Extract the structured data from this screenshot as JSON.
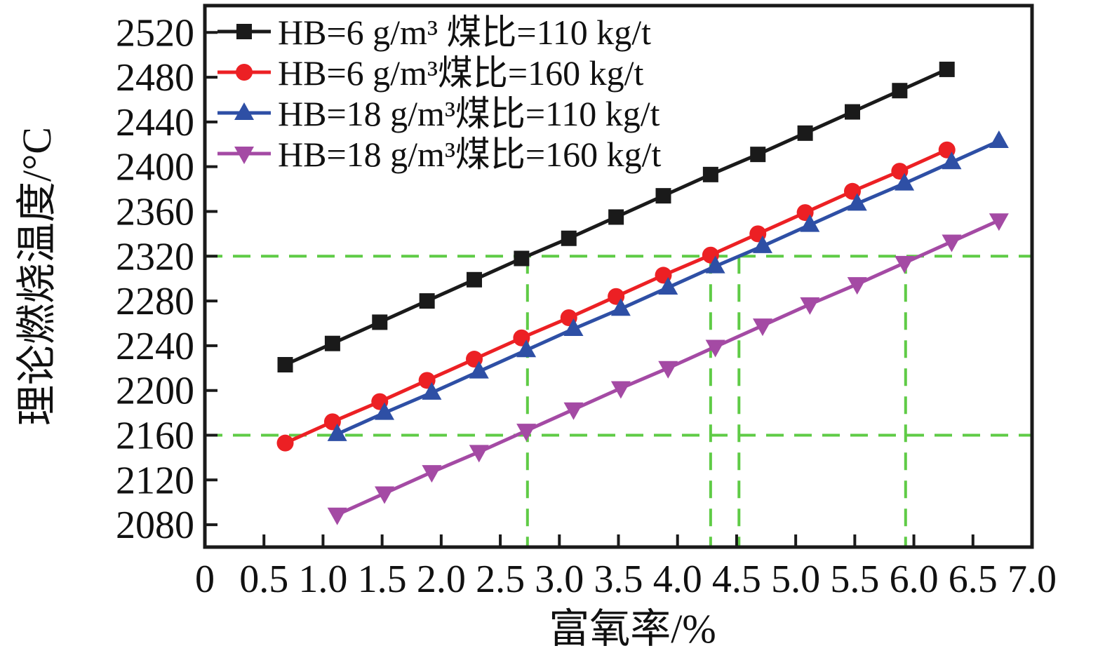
{
  "chart_data": {
    "type": "line",
    "title": "",
    "xlabel": "富氧率/%",
    "ylabel": "理论燃烧温度/°C",
    "xlim": [
      0,
      7.0
    ],
    "ylim": [
      2060,
      2544
    ],
    "x_ticks": [
      0,
      0.5,
      1.0,
      1.5,
      2.0,
      2.5,
      3.0,
      3.5,
      4.0,
      4.5,
      5.0,
      5.5,
      6.0,
      6.5,
      7.0
    ],
    "x_tick_labels": [
      "0",
      "0.5",
      "1.0",
      "1.5",
      "2.0",
      "2.5",
      "3.0",
      "3.5",
      "4.0",
      "4.5",
      "5.0",
      "5.5",
      "6.0",
      "6.5",
      "7.0"
    ],
    "y_ticks": [
      2080,
      2120,
      2160,
      2200,
      2240,
      2280,
      2320,
      2360,
      2400,
      2440,
      2480,
      2520
    ],
    "y_tick_labels": [
      "2080",
      "2120",
      "2160",
      "2200",
      "2240",
      "2280",
      "2320",
      "2360",
      "2400",
      "2440",
      "2480",
      "2520"
    ],
    "grid": false,
    "legend_position": "top-left",
    "axis_color": "#1a1a1a",
    "background_color": "#ffffff",
    "series": [
      {
        "name": "HB=6 g/m³ 煤比=110 kg/t",
        "color": "#1a1a1a",
        "marker": "square",
        "x": [
          0.68,
          1.08,
          1.48,
          1.88,
          2.28,
          2.68,
          3.08,
          3.48,
          3.88,
          4.28,
          4.68,
          5.08,
          5.48,
          5.88,
          6.28
        ],
        "y": [
          2223,
          2242,
          2261,
          2280,
          2299,
          2318,
          2336,
          2355,
          2374,
          2393,
          2411,
          2430,
          2449,
          2468,
          2487
        ]
      },
      {
        "name": "HB=6 g/m³煤比=160 kg/t",
        "color": "#ec2024",
        "marker": "circle",
        "x": [
          0.68,
          1.08,
          1.48,
          1.88,
          2.28,
          2.68,
          3.08,
          3.48,
          3.88,
          4.28,
          4.68,
          5.08,
          5.48,
          5.88,
          6.28
        ],
        "y": [
          2153,
          2172,
          2190,
          2209,
          2228,
          2247,
          2265,
          2284,
          2303,
          2321,
          2340,
          2359,
          2378,
          2396,
          2415
        ]
      },
      {
        "name": "HB=18 g/m³煤比=110 kg/t",
        "color": "#2e4fa5",
        "marker": "triangle-up",
        "x": [
          1.12,
          1.52,
          1.92,
          2.32,
          2.72,
          3.12,
          3.52,
          3.92,
          4.32,
          4.72,
          5.12,
          5.52,
          5.92,
          6.32,
          6.72
        ],
        "y": [
          2161,
          2180,
          2198,
          2217,
          2236,
          2255,
          2273,
          2292,
          2311,
          2329,
          2348,
          2367,
          2385,
          2404,
          2423
        ]
      },
      {
        "name": "HB=18 g/m³煤比=160 kg/t",
        "color": "#a44aa4",
        "marker": "triangle-down",
        "x": [
          1.12,
          1.52,
          1.92,
          2.32,
          2.72,
          3.12,
          3.52,
          3.92,
          4.32,
          4.72,
          5.12,
          5.52,
          5.92,
          6.32,
          6.72
        ],
        "y": [
          2089,
          2108,
          2127,
          2145,
          2164,
          2183,
          2202,
          2220,
          2239,
          2258,
          2277,
          2295,
          2314,
          2333,
          2352
        ]
      }
    ],
    "reference_lines": {
      "color": "#5fcb46",
      "style": "dashed",
      "horizontal_y": [
        2160,
        2320
      ],
      "vertical": [
        {
          "x": 2.73,
          "y_top": 2320
        },
        {
          "x": 4.28,
          "y_top": 2320
        },
        {
          "x": 4.52,
          "y_top": 2320
        },
        {
          "x": 5.93,
          "y_top": 2320
        }
      ]
    }
  }
}
